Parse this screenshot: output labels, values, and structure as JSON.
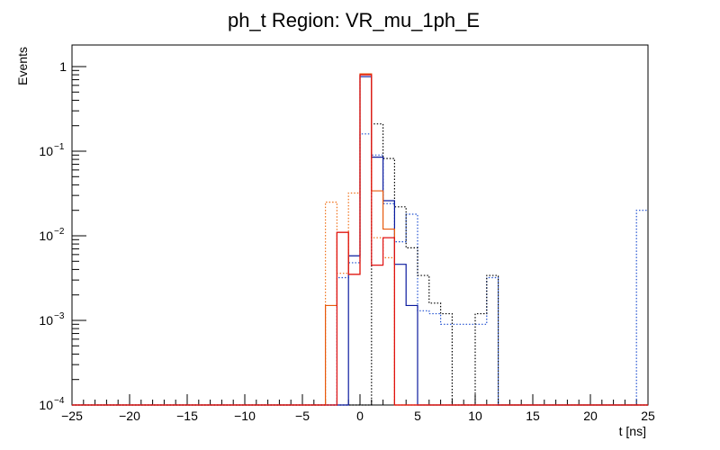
{
  "chart_data": {
    "type": "histogram",
    "title": "ph_t Region: VR_mu_1ph_E",
    "xlabel": "t [ns]",
    "ylabel": "Events",
    "xlim": [
      -25,
      25
    ],
    "ylim": [
      0.0001,
      1.8
    ],
    "yscale": "log",
    "bin_width": 1,
    "x_ticks": [
      -25,
      -20,
      -15,
      -10,
      -5,
      0,
      5,
      10,
      15,
      20,
      25
    ],
    "x_tick_labels": [
      "−25",
      "−20",
      "−15",
      "−10",
      "−5",
      "0",
      "5",
      "10",
      "15",
      "20",
      "25"
    ],
    "y_ticks": [
      {
        "value": 0.0001,
        "base": "10",
        "exp": "−4"
      },
      {
        "value": 0.001,
        "base": "10",
        "exp": "−3"
      },
      {
        "value": 0.01,
        "base": "10",
        "exp": "−2"
      },
      {
        "value": 0.1,
        "base": "10",
        "exp": "−1"
      },
      {
        "value": 1,
        "base": "1",
        "exp": ""
      }
    ],
    "series": [
      {
        "name": "blue-dotted",
        "color": "#1f4fd0",
        "style": "dotted",
        "bins": [
          {
            "x": -2,
            "y": 0.0032
          },
          {
            "x": -1,
            "y": 0.0048
          },
          {
            "x": 0,
            "y": 0.16
          },
          {
            "x": 1,
            "y": 0.09
          },
          {
            "x": 2,
            "y": 0.024
          },
          {
            "x": 3,
            "y": 0.0085
          },
          {
            "x": 4,
            "y": 0.018
          },
          {
            "x": 5,
            "y": 0.0013
          },
          {
            "x": 6,
            "y": 0.0012
          },
          {
            "x": 7,
            "y": 0.0009
          },
          {
            "x": 8,
            "y": 0.0009
          },
          {
            "x": 9,
            "y": 0.0009
          },
          {
            "x": 10,
            "y": 0.0009
          },
          {
            "x": 11,
            "y": 0.0032
          },
          {
            "x": 24,
            "y": 0.02
          }
        ]
      },
      {
        "name": "black-dotted",
        "color": "#000000",
        "style": "dotted",
        "bins": [
          {
            "x": 1,
            "y": 0.21
          },
          {
            "x": 2,
            "y": 0.082
          },
          {
            "x": 3,
            "y": 0.022
          },
          {
            "x": 4,
            "y": 0.0072
          },
          {
            "x": 5,
            "y": 0.0034
          },
          {
            "x": 6,
            "y": 0.0016
          },
          {
            "x": 7,
            "y": 0.0012
          },
          {
            "x": 10,
            "y": 0.0012
          },
          {
            "x": 11,
            "y": 0.0034
          }
        ]
      },
      {
        "name": "blue-solid",
        "color": "#0a1a9e",
        "style": "solid",
        "bins": [
          {
            "x": -1,
            "y": 0.0058
          },
          {
            "x": 0,
            "y": 0.76
          },
          {
            "x": 1,
            "y": 0.085
          },
          {
            "x": 2,
            "y": 0.026
          },
          {
            "x": 3,
            "y": 0.0046
          },
          {
            "x": 4,
            "y": 0.0015
          }
        ]
      },
      {
        "name": "orange-dotted",
        "color": "#f07018",
        "style": "dotted",
        "bins": [
          {
            "x": -3,
            "y": 0.025
          },
          {
            "x": -2,
            "y": 0.0036
          },
          {
            "x": -1,
            "y": 0.032
          },
          {
            "x": 0,
            "y": 0.82
          },
          {
            "x": 1,
            "y": 0.0095
          },
          {
            "x": 2,
            "y": 0.0055
          }
        ]
      },
      {
        "name": "orange-solid",
        "color": "#e8590c",
        "style": "solid",
        "bins": [
          {
            "x": -3,
            "y": 0.0015
          },
          {
            "x": -2,
            "y": 0.011
          },
          {
            "x": -1,
            "y": 0.0035
          },
          {
            "x": 0,
            "y": 0.82
          },
          {
            "x": 1,
            "y": 0.034
          },
          {
            "x": 2,
            "y": 0.012
          }
        ]
      },
      {
        "name": "red-solid",
        "color": "#e01010",
        "style": "solid",
        "bins": [
          {
            "x": -2,
            "y": 0.011
          },
          {
            "x": -1,
            "y": 0.0035
          },
          {
            "x": 0,
            "y": 0.8
          },
          {
            "x": 1,
            "y": 0.0045
          },
          {
            "x": 2,
            "y": 0.0095
          }
        ]
      }
    ]
  }
}
